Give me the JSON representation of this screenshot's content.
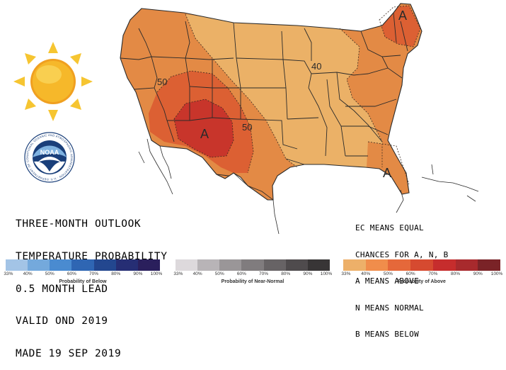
{
  "map": {
    "contour_labels": [
      "50",
      "40",
      "50"
    ],
    "max_labels": [
      "A",
      "A",
      "A"
    ]
  },
  "title_lines": [
    "THREE-MONTH OUTLOOK",
    "TEMPERATURE PROBABILITY",
    "0.5 MONTH LEAD",
    "VALID OND 2019",
    "MADE 19 SEP 2019"
  ],
  "noaa_logo": {
    "text": "NOAA",
    "ring_text": "NATIONAL OCEANIC AND ATMOSPHERIC ADMINISTRATION · U.S. DEPARTMENT OF COMMERCE"
  },
  "key_note_lines": [
    "EC MEANS EQUAL",
    "CHANCES FOR A, N, B",
    "A MEANS ABOVE",
    "N MEANS NORMAL",
    "B MEANS BELOW"
  ],
  "legend": [
    {
      "title": "Probability of Below",
      "ticks": [
        "33%",
        "40%",
        "50%",
        "60%",
        "70%",
        "80%",
        "90%",
        "100%"
      ],
      "colors": [
        "#a3c4e6",
        "#74a9dc",
        "#4a8bd0",
        "#2f66b3",
        "#23478f",
        "#262e74",
        "#2a1f5c"
      ]
    },
    {
      "title": "Probability of Near-Normal",
      "ticks": [
        "33%",
        "40%",
        "50%",
        "60%",
        "70%",
        "80%",
        "90%",
        "100%"
      ],
      "colors": [
        "#ddd9dc",
        "#b8b4b7",
        "#9a9698",
        "#807c7e",
        "#676365",
        "#4f4b4d",
        "#383536"
      ]
    },
    {
      "title": "Probability of Above",
      "ticks": [
        "33%",
        "40%",
        "50%",
        "60%",
        "70%",
        "80%",
        "90%",
        "100%"
      ],
      "colors": [
        "#edb069",
        "#f08d4b",
        "#e5683a",
        "#d64a30",
        "#c62d2d",
        "#a82a2d",
        "#7a2327"
      ]
    }
  ],
  "colors": {
    "above_40_50": "#e38a45",
    "above_33_40": "#ebb167",
    "above_50_60": "#dc6033",
    "above_60_70": "#c8352b",
    "outline": "#2a2a2a"
  }
}
